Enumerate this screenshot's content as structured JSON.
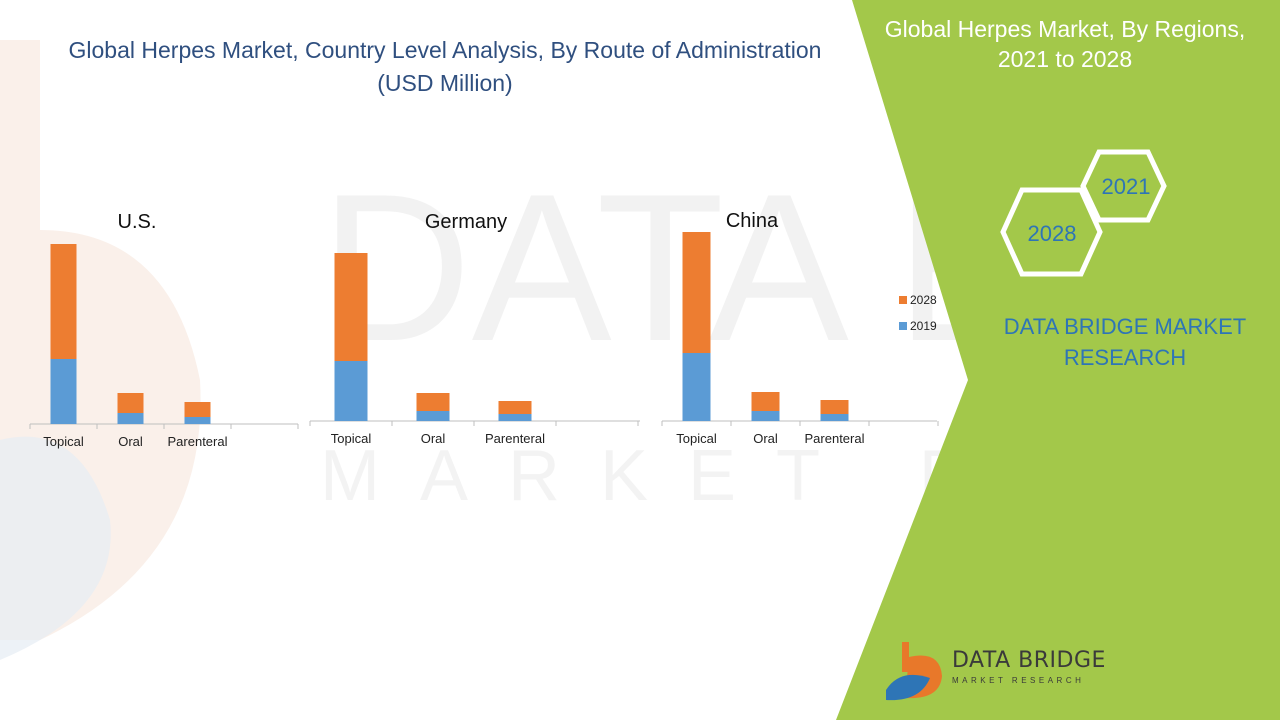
{
  "title": {
    "line1": "Global Herpes Market, Country Level Analysis, By  Route of Administration",
    "line2": "(USD Million)"
  },
  "side_panel": {
    "title_line1": "Global Herpes Market, By Regions,",
    "title_line2": "2021 to 2028",
    "hex_2021": "2021",
    "hex_2028": "2028",
    "brand_line1": "DATA BRIDGE MARKET",
    "brand_line2": "RESEARCH"
  },
  "logo": {
    "name": "DATA BRIDGE",
    "tagline": "MARKET RESEARCH"
  },
  "watermark": {
    "line1": "DATA BRIDGE",
    "line2": "MARKET RESEARCH"
  },
  "colors": {
    "series_2019": "#5b9bd5",
    "series_2028": "#ed7d31",
    "panel_green": "#a3c84a",
    "title_blue": "#2f4f7f",
    "brand_blue": "#2e75b6"
  },
  "legend": {
    "items": [
      "2028",
      "2019"
    ],
    "placement": "right"
  },
  "chart_data": [
    {
      "type": "bar",
      "stacked": true,
      "title": "U.S.",
      "categories": [
        "Topical",
        "Oral",
        "Parenteral"
      ],
      "series": [
        {
          "name": "2019",
          "values": [
            65,
            11,
            7
          ]
        },
        {
          "name": "2028",
          "values": [
            115,
            20,
            15
          ]
        }
      ],
      "ylim": [
        0,
        180
      ]
    },
    {
      "type": "bar",
      "stacked": true,
      "title": "Germany",
      "categories": [
        "Topical",
        "Oral",
        "Parenteral"
      ],
      "series": [
        {
          "name": "2019",
          "values": [
            60,
            10,
            7
          ]
        },
        {
          "name": "2028",
          "values": [
            108,
            18,
            13
          ]
        }
      ],
      "ylim": [
        0,
        180
      ]
    },
    {
      "type": "bar",
      "stacked": true,
      "title": "China",
      "categories": [
        "Topical",
        "Oral",
        "Parenteral"
      ],
      "series": [
        {
          "name": "2019",
          "values": [
            68,
            10,
            7
          ]
        },
        {
          "name": "2028",
          "values": [
            121,
            19,
            14
          ]
        }
      ],
      "ylim": [
        0,
        180
      ]
    }
  ]
}
